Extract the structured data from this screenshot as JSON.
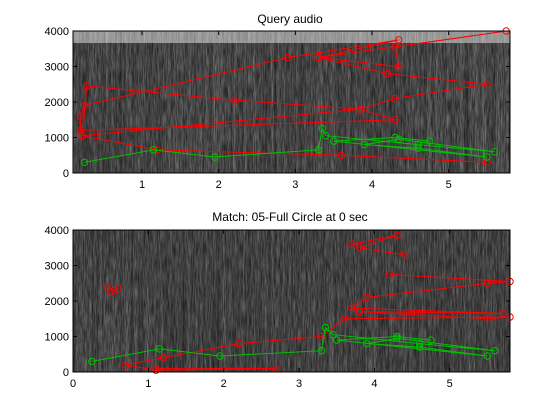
{
  "chart_data": [
    {
      "type": "line",
      "title": "Query audio",
      "xlabel": "",
      "ylabel": "",
      "xlim": [
        0.1,
        5.8
      ],
      "ylim": [
        0,
        4000
      ],
      "xticks": [
        1,
        2,
        3,
        4,
        5
      ],
      "yticks": [
        0,
        1000,
        2000,
        3000,
        4000
      ],
      "grid": false,
      "background": "grayscale spectrogram",
      "series": [
        {
          "color": "#ff0000",
          "points": [
            [
              0.22,
              1050
            ],
            [
              0.28,
              2450
            ],
            [
              2.2,
              2050
            ],
            [
              3.85,
              1800
            ],
            [
              4.3,
              1500
            ],
            [
              0.2,
              1200
            ],
            [
              0.2,
              1600
            ],
            [
              0.25,
              1900
            ],
            [
              2.9,
              3250
            ],
            [
              4.35,
              3750
            ],
            [
              3.3,
              3250
            ],
            [
              4.35,
              3000
            ],
            [
              4.3,
              3550
            ],
            [
              5.75,
              4000
            ],
            [
              3.3,
              3250
            ],
            [
              4.2,
              2800
            ],
            [
              5.5,
              2500
            ],
            [
              4.3,
              2100
            ],
            [
              3.85,
              1800
            ],
            [
              0.22,
              1050
            ],
            [
              1.2,
              650
            ],
            [
              3.6,
              500
            ],
            [
              5.5,
              300
            ]
          ]
        },
        {
          "color": "#00c000",
          "points": [
            [
              0.25,
              300
            ],
            [
              1.15,
              650
            ],
            [
              1.95,
              450
            ],
            [
              3.3,
              650
            ],
            [
              3.35,
              1250
            ],
            [
              3.4,
              1050
            ],
            [
              4.6,
              800
            ],
            [
              5.6,
              600
            ],
            [
              4.35,
              950
            ],
            [
              3.9,
              800
            ],
            [
              4.6,
              700
            ],
            [
              5.5,
              450
            ],
            [
              3.5,
              900
            ],
            [
              4.3,
              1000
            ],
            [
              4.75,
              900
            ]
          ]
        }
      ]
    },
    {
      "type": "line",
      "title": "Match: 05-Full Circle at 0 sec",
      "xlabel": "",
      "ylabel": "",
      "xlim": [
        0,
        5.8
      ],
      "ylim": [
        0,
        4000
      ],
      "xticks": [
        0,
        1,
        2,
        3,
        4,
        5
      ],
      "yticks": [
        0,
        1000,
        2000,
        3000,
        4000
      ],
      "grid": false,
      "background": "grayscale spectrogram",
      "series": [
        {
          "color": "#ff0000",
          "points": [
            [
              0.45,
              2400
            ],
            [
              0.55,
              2300
            ],
            [
              0.6,
              2350
            ],
            [
              0.5,
              2250
            ]
          ]
        },
        {
          "color": "#ff0000",
          "points": [
            [
              3.7,
              3600
            ],
            [
              4.3,
              3850
            ],
            [
              3.8,
              3500
            ],
            [
              4.4,
              3300
            ]
          ]
        },
        {
          "color": "#ff0000",
          "points": [
            [
              4.2,
              2750
            ],
            [
              5.8,
              2550
            ],
            [
              5.5,
              2500
            ],
            [
              3.9,
              2100
            ],
            [
              3.7,
              1800
            ],
            [
              5.7,
              1650
            ],
            [
              3.8,
              1700
            ],
            [
              5.5,
              1500
            ],
            [
              5.8,
              1550
            ],
            [
              3.6,
              1500
            ],
            [
              3.3,
              1000
            ],
            [
              2.2,
              800
            ],
            [
              1.2,
              400
            ],
            [
              0.7,
              200
            ],
            [
              1.1,
              50
            ],
            [
              2.7,
              100
            ],
            [
              1.1,
              100
            ]
          ]
        },
        {
          "color": "#00c000",
          "points": [
            [
              0.25,
              300
            ],
            [
              1.15,
              650
            ],
            [
              1.95,
              450
            ],
            [
              3.3,
              600
            ],
            [
              3.35,
              1250
            ],
            [
              3.45,
              1050
            ],
            [
              4.6,
              800
            ],
            [
              5.6,
              600
            ],
            [
              4.3,
              950
            ],
            [
              3.9,
              800
            ],
            [
              4.6,
              700
            ],
            [
              5.5,
              450
            ],
            [
              3.5,
              900
            ],
            [
              4.3,
              1000
            ],
            [
              4.75,
              900
            ]
          ]
        }
      ]
    }
  ]
}
